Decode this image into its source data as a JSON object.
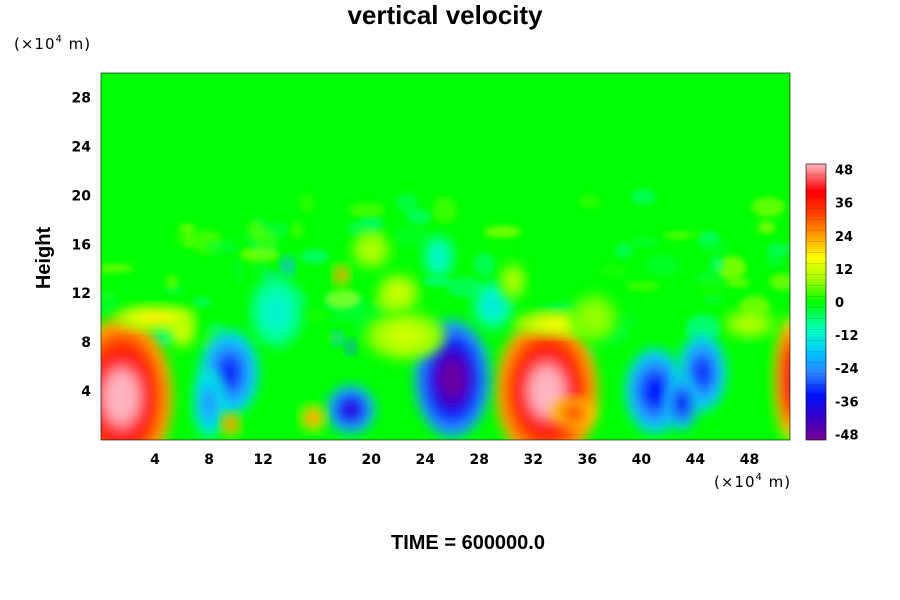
{
  "chart_data": {
    "type": "heatmap",
    "title": "vertical velocity",
    "ylabel": "Height",
    "y_unit": {
      "prefix": "(×10",
      "exp": "4",
      "suffix": " m)"
    },
    "x_unit": {
      "prefix": "(×10",
      "exp": "4",
      "suffix": " m)"
    },
    "xlim": [
      0,
      51
    ],
    "ylim": [
      0,
      30
    ],
    "x_ticks": [
      4,
      8,
      12,
      16,
      20,
      24,
      28,
      32,
      36,
      40,
      44,
      48
    ],
    "y_ticks": [
      4,
      8,
      12,
      16,
      20,
      24,
      28
    ],
    "colorbar": {
      "range": [
        -50,
        50
      ],
      "ticks": [
        48,
        36,
        24,
        12,
        0,
        -12,
        -24,
        -36,
        -48
      ],
      "colors": [
        {
          "value": -50,
          "color": "#7a0096"
        },
        {
          "value": -42,
          "color": "#3a00c8"
        },
        {
          "value": -34,
          "color": "#0010ff"
        },
        {
          "value": -26,
          "color": "#2a80ff"
        },
        {
          "value": -18,
          "color": "#00c8ff"
        },
        {
          "value": -10,
          "color": "#00ffc0"
        },
        {
          "value": 0,
          "color": "#00ff00"
        },
        {
          "value": 8,
          "color": "#a0ff00"
        },
        {
          "value": 16,
          "color": "#ffff00"
        },
        {
          "value": 24,
          "color": "#ffa000"
        },
        {
          "value": 32,
          "color": "#ff4000"
        },
        {
          "value": 40,
          "color": "#ff0000"
        },
        {
          "value": 50,
          "color": "#ffb4c0"
        }
      ]
    },
    "features": [
      {
        "x": 1.5,
        "y": 3.5,
        "rx": 3.8,
        "ry": 6.5,
        "value": 50
      },
      {
        "x": 33,
        "y": 4.0,
        "rx": 3.8,
        "ry": 6.0,
        "value": 50
      },
      {
        "x": 51,
        "y": 5.0,
        "rx": 1.2,
        "ry": 5.0,
        "value": 42
      },
      {
        "x": 35,
        "y": 2.2,
        "rx": 1.6,
        "ry": 1.2,
        "value": 36
      },
      {
        "x": 26,
        "y": 5.0,
        "rx": 2.8,
        "ry": 4.8,
        "value": -48
      },
      {
        "x": 18.5,
        "y": 2.5,
        "rx": 1.8,
        "ry": 2.0,
        "value": -40
      },
      {
        "x": 10.2,
        "y": 6.2,
        "rx": 0.6,
        "ry": 0.8,
        "value": -46
      },
      {
        "x": 9.5,
        "y": 5.5,
        "rx": 2.2,
        "ry": 3.5,
        "value": -32
      },
      {
        "x": 8.0,
        "y": 3.0,
        "rx": 1.2,
        "ry": 2.8,
        "value": -24
      },
      {
        "x": 41,
        "y": 4.0,
        "rx": 2.2,
        "ry": 3.5,
        "value": -34
      },
      {
        "x": 44.5,
        "y": 5.5,
        "rx": 1.8,
        "ry": 3.2,
        "value": -32
      },
      {
        "x": 43,
        "y": 3.0,
        "rx": 1.2,
        "ry": 2.2,
        "value": -36
      },
      {
        "x": 15.7,
        "y": 1.8,
        "rx": 0.9,
        "ry": 1.0,
        "value": 30
      },
      {
        "x": 9.6,
        "y": 1.3,
        "rx": 0.7,
        "ry": 0.9,
        "value": 34
      },
      {
        "x": 17.8,
        "y": 13.5,
        "rx": 0.6,
        "ry": 0.8,
        "value": 34
      },
      {
        "x": 13.8,
        "y": 14.2,
        "rx": 0.5,
        "ry": 0.8,
        "value": -28
      },
      {
        "x": 12.6,
        "y": 13.2,
        "rx": 0.4,
        "ry": 0.5,
        "value": -26
      },
      {
        "x": 18.5,
        "y": 7.6,
        "rx": 0.4,
        "ry": 0.6,
        "value": -38
      },
      {
        "x": 17.5,
        "y": 8.3,
        "rx": 0.4,
        "ry": 0.6,
        "value": -28
      },
      {
        "x": 22.5,
        "y": 8.5,
        "rx": 3.0,
        "ry": 2.0,
        "value": 12
      },
      {
        "x": 29,
        "y": 11,
        "rx": 1.5,
        "ry": 2.0,
        "value": -14
      },
      {
        "x": 30.5,
        "y": 13,
        "rx": 1.0,
        "ry": 1.5,
        "value": 10
      },
      {
        "x": 6,
        "y": 9,
        "rx": 1.0,
        "ry": 1.5,
        "value": 14
      },
      {
        "x": 4,
        "y": 10,
        "rx": 3.0,
        "ry": 1.0,
        "value": 18
      },
      {
        "x": 34,
        "y": 9.5,
        "rx": 3.5,
        "ry": 1.0,
        "value": 16
      },
      {
        "x": 22,
        "y": 12,
        "rx": 1.6,
        "ry": 1.6,
        "value": 12
      },
      {
        "x": 20,
        "y": 15.5,
        "rx": 1.5,
        "ry": 1.5,
        "value": 10
      },
      {
        "x": 13,
        "y": 10.5,
        "rx": 2.0,
        "ry": 3.0,
        "value": -12
      },
      {
        "x": 36.5,
        "y": 10.0,
        "rx": 1.8,
        "ry": 2.0,
        "value": 8
      },
      {
        "x": 48,
        "y": 9.5,
        "rx": 2.0,
        "ry": 1.2,
        "value": 10
      },
      {
        "x": 25,
        "y": 15,
        "rx": 1.2,
        "ry": 1.8,
        "value": -12
      }
    ]
  },
  "footer": {
    "time_label": "TIME = 600000.0"
  }
}
